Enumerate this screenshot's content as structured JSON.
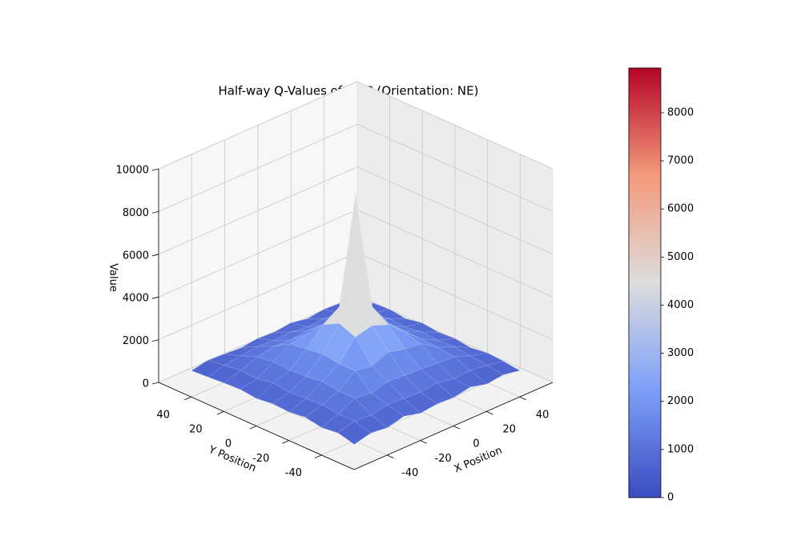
{
  "chart_data": {
    "type": "surface3d",
    "title": "Half-way Q-Values of MCC (Orientation: NE)",
    "xlabel": "X Position",
    "ylabel": "Y Position",
    "zlabel": "Value",
    "x": [
      -50,
      -40,
      -30,
      -20,
      -10,
      0,
      10,
      20,
      30,
      40,
      50
    ],
    "y": [
      -50,
      -40,
      -30,
      -20,
      -10,
      0,
      10,
      20,
      30,
      40,
      50
    ],
    "z": [
      [
        500,
        700,
        600,
        800,
        600,
        700,
        650,
        800,
        600,
        700,
        550
      ],
      [
        700,
        900,
        850,
        1000,
        950,
        900,
        1000,
        850,
        900,
        800,
        650
      ],
      [
        600,
        900,
        1300,
        1200,
        1400,
        1350,
        1300,
        1250,
        1200,
        900,
        700
      ],
      [
        750,
        1000,
        1300,
        1900,
        1800,
        2100,
        1900,
        1800,
        1300,
        1000,
        600
      ],
      [
        650,
        950,
        1400,
        1900,
        2800,
        3000,
        2700,
        2000,
        1350,
        950,
        700
      ],
      [
        700,
        900,
        1300,
        2000,
        3100,
        8900,
        3200,
        2100,
        1400,
        1000,
        650
      ],
      [
        600,
        1000,
        1250,
        1900,
        2700,
        3200,
        2900,
        1900,
        1300,
        900,
        750
      ],
      [
        700,
        850,
        1300,
        1800,
        1900,
        2000,
        1800,
        1900,
        1250,
        950,
        600
      ],
      [
        650,
        900,
        1200,
        1350,
        1300,
        1400,
        1350,
        1300,
        1200,
        850,
        700
      ],
      [
        600,
        800,
        900,
        1000,
        950,
        1000,
        900,
        950,
        850,
        900,
        650
      ],
      [
        550,
        700,
        650,
        600,
        700,
        650,
        750,
        600,
        700,
        650,
        500
      ]
    ],
    "xlim": [
      -60,
      60
    ],
    "ylim": [
      -60,
      60
    ],
    "zlim": [
      0,
      10000
    ],
    "xticks": [
      -40,
      -20,
      0,
      20,
      40
    ],
    "yticks": [
      -40,
      -20,
      0,
      20,
      40
    ],
    "zticks": [
      0,
      2000,
      4000,
      6000,
      8000,
      10000
    ],
    "colormap": "coolwarm",
    "clim": [
      0,
      8930
    ],
    "colorbar_ticks": [
      0,
      1000,
      2000,
      3000,
      4000,
      5000,
      6000,
      7000,
      8000
    ],
    "grid": true
  }
}
